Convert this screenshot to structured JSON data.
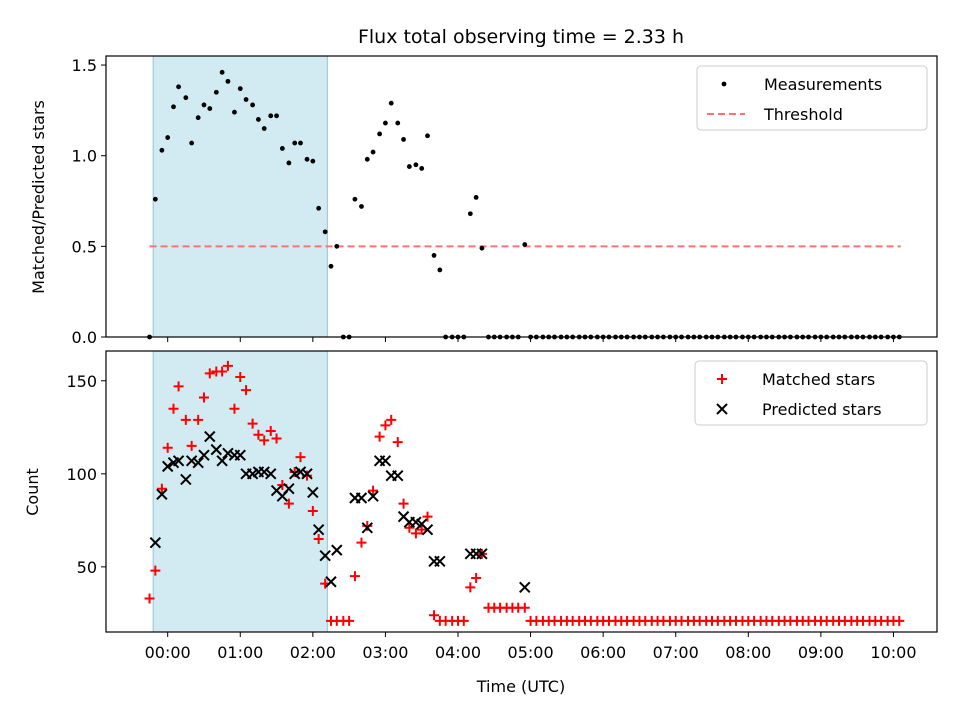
{
  "colors": {
    "measurement": "#000000",
    "threshold": "#ff7070",
    "matched": "#ff0000",
    "predicted": "#000000",
    "shade": "#add8e6"
  },
  "chart_data": [
    {
      "type": "scatter",
      "title": "Flux total observing time = 2.33 h",
      "xlabel": "",
      "ylabel": "Matched/Predicted stars",
      "xlim": [
        -0.85,
        10.6
      ],
      "ylim": [
        0,
        1.55
      ],
      "yticks": [
        0,
        0.5,
        1.0,
        1.5
      ],
      "ytick_labels": [
        "0.0",
        "0.5",
        "1.0",
        "1.5"
      ],
      "shaded_span": [
        -0.2,
        2.2
      ],
      "legend": {
        "position": "top-right",
        "entries": [
          "Measurements",
          "Threshold"
        ]
      },
      "threshold": {
        "name": "Threshold",
        "y": 0.5,
        "x_range": [
          -0.25,
          10.1
        ],
        "style": "dashed"
      },
      "series": [
        {
          "name": "Measurements",
          "marker": "dot",
          "x": [
            -0.25,
            -0.17,
            -0.08,
            0.0,
            0.08,
            0.15,
            0.25,
            0.33,
            0.42,
            0.5,
            0.58,
            0.67,
            0.75,
            0.83,
            0.92,
            1.0,
            1.08,
            1.17,
            1.25,
            1.33,
            1.42,
            1.5,
            1.58,
            1.67,
            1.75,
            1.83,
            1.92,
            2.0,
            2.08,
            2.17,
            2.25,
            2.33,
            2.42,
            2.5,
            2.58,
            2.67,
            2.75,
            2.83,
            2.92,
            3.0,
            3.08,
            3.17,
            3.25,
            3.33,
            3.42,
            3.5,
            3.58,
            3.67,
            3.75,
            3.83,
            3.92,
            4.0,
            4.08,
            4.17,
            4.25,
            4.33,
            4.42,
            4.5,
            4.58,
            4.67,
            4.75,
            4.83,
            4.92,
            5.0,
            5.08,
            5.17,
            5.25,
            5.33,
            5.42,
            5.5,
            5.58,
            5.67,
            5.75,
            5.83,
            5.92,
            6.0,
            6.08,
            6.17,
            6.25,
            6.33,
            6.42,
            6.5,
            6.58,
            6.67,
            6.75,
            6.83,
            6.92,
            7.0,
            7.08,
            7.17,
            7.25,
            7.33,
            7.42,
            7.5,
            7.58,
            7.67,
            7.75,
            7.83,
            7.92,
            8.0,
            8.08,
            8.17,
            8.25,
            8.33,
            8.42,
            8.5,
            8.58,
            8.67,
            8.75,
            8.83,
            8.92,
            9.0,
            9.08,
            9.17,
            9.25,
            9.33,
            9.42,
            9.5,
            9.58,
            9.67,
            9.75,
            9.83,
            9.92,
            10.0,
            10.08
          ],
          "y": [
            0.0,
            0.76,
            1.03,
            1.1,
            1.27,
            1.38,
            1.32,
            1.07,
            1.21,
            1.28,
            1.26,
            1.35,
            1.46,
            1.41,
            1.24,
            1.37,
            1.31,
            1.28,
            1.2,
            1.15,
            1.22,
            1.22,
            1.04,
            0.96,
            1.07,
            1.07,
            0.98,
            0.97,
            0.71,
            0.58,
            0.39,
            0.5,
            0.0,
            0.0,
            0.76,
            0.72,
            0.98,
            1.02,
            1.12,
            1.18,
            1.29,
            1.18,
            1.09,
            0.94,
            0.95,
            0.93,
            1.11,
            0.45,
            0.37,
            0.0,
            0.0,
            0.0,
            0.0,
            0.68,
            0.77,
            0.49,
            0.0,
            0.0,
            0.0,
            0.0,
            0.0,
            0.0,
            0.51,
            0.0,
            0.0,
            0.0,
            0.0,
            0.0,
            0.0,
            0.0,
            0.0,
            0.0,
            0.0,
            0.0,
            0.0,
            0.0,
            0.0,
            0.0,
            0.0,
            0.0,
            0.0,
            0.0,
            0.0,
            0.0,
            0.0,
            0.0,
            0.0,
            0.0,
            0.0,
            0.0,
            0.0,
            0.0,
            0.0,
            0.0,
            0.0,
            0.0,
            0.0,
            0.0,
            0.0,
            0.0,
            0.0,
            0.0,
            0.0,
            0.0,
            0.0,
            0.0,
            0.0,
            0.0,
            0.0,
            0.0,
            0.0,
            0.0,
            0.0,
            0.0,
            0.0,
            0.0,
            0.0,
            0.0,
            0.0,
            0.0,
            0.0,
            0.0,
            0.0,
            0.0,
            0.0
          ]
        }
      ]
    },
    {
      "type": "scatter",
      "title": "",
      "xlabel": "Time (UTC)",
      "ylabel": "Count",
      "xlim": [
        -0.85,
        10.6
      ],
      "ylim": [
        15,
        166
      ],
      "yticks": [
        50,
        100,
        150
      ],
      "ytick_labels": [
        "50",
        "100",
        "150"
      ],
      "xticks": [
        0,
        1,
        2,
        3,
        4,
        5,
        6,
        7,
        8,
        9,
        10
      ],
      "xtick_labels": [
        "00:00",
        "01:00",
        "02:00",
        "03:00",
        "04:00",
        "05:00",
        "06:00",
        "07:00",
        "08:00",
        "09:00",
        "10:00"
      ],
      "shaded_span": [
        -0.2,
        2.2
      ],
      "legend": {
        "position": "top-right",
        "entries": [
          "Matched stars",
          "Predicted stars"
        ]
      },
      "series": [
        {
          "name": "Matched stars",
          "marker": "plus",
          "x": [
            -0.25,
            -0.17,
            -0.08,
            0.0,
            0.08,
            0.15,
            0.25,
            0.33,
            0.42,
            0.5,
            0.58,
            0.67,
            0.75,
            0.83,
            0.92,
            1.0,
            1.08,
            1.17,
            1.25,
            1.33,
            1.42,
            1.5,
            1.58,
            1.67,
            1.75,
            1.83,
            1.92,
            2.0,
            2.08,
            2.17,
            2.25,
            2.33,
            2.42,
            2.5,
            2.58,
            2.67,
            2.75,
            2.83,
            2.92,
            3.0,
            3.08,
            3.17,
            3.25,
            3.33,
            3.42,
            3.5,
            3.58,
            3.67,
            3.75,
            3.83,
            3.92,
            4.0,
            4.08,
            4.17,
            4.25,
            4.33,
            4.42,
            4.5,
            4.58,
            4.67,
            4.75,
            4.83,
            4.92,
            5.0,
            5.08,
            5.17,
            5.25,
            5.33,
            5.42,
            5.5,
            5.58,
            5.67,
            5.75,
            5.83,
            5.92,
            6.0,
            6.08,
            6.17,
            6.25,
            6.33,
            6.42,
            6.5,
            6.58,
            6.67,
            6.75,
            6.83,
            6.92,
            7.0,
            7.08,
            7.17,
            7.25,
            7.33,
            7.42,
            7.5,
            7.58,
            7.67,
            7.75,
            7.83,
            7.92,
            8.0,
            8.08,
            8.17,
            8.25,
            8.33,
            8.42,
            8.5,
            8.58,
            8.67,
            8.75,
            8.83,
            8.92,
            9.0,
            9.08,
            9.17,
            9.25,
            9.33,
            9.42,
            9.5,
            9.58,
            9.67,
            9.75,
            9.83,
            9.92,
            10.0,
            10.08
          ],
          "y": [
            33,
            48,
            92,
            114,
            135,
            147,
            129,
            115,
            129,
            141,
            154,
            155,
            155,
            158,
            135,
            152,
            145,
            127,
            121,
            118,
            123,
            119,
            94,
            84,
            101,
            109,
            99,
            80,
            65,
            41,
            21,
            21,
            21,
            21,
            45,
            63,
            72,
            91,
            120,
            126,
            129,
            117,
            84,
            71,
            68,
            70,
            77,
            24,
            21,
            21,
            21,
            21,
            21,
            39,
            44,
            57,
            28,
            28,
            28,
            28,
            28,
            28,
            28,
            21,
            21,
            21,
            21,
            21,
            21,
            21,
            21,
            21,
            21,
            21,
            21,
            21,
            21,
            21,
            21,
            21,
            21,
            21,
            21,
            21,
            21,
            21,
            21,
            21,
            21,
            21,
            21,
            21,
            21,
            21,
            21,
            21,
            21,
            21,
            21,
            21,
            21,
            21,
            21,
            21,
            21,
            21,
            21,
            21,
            21,
            21,
            21,
            21,
            21,
            21,
            21,
            21,
            21,
            21,
            21,
            21,
            21,
            21,
            21,
            21,
            21
          ]
        },
        {
          "name": "Predicted stars",
          "marker": "x",
          "x": [
            -0.17,
            -0.08,
            0.0,
            0.08,
            0.15,
            0.25,
            0.33,
            0.42,
            0.5,
            0.58,
            0.67,
            0.75,
            0.83,
            0.92,
            1.0,
            1.08,
            1.17,
            1.25,
            1.33,
            1.42,
            1.5,
            1.58,
            1.67,
            1.75,
            1.83,
            1.92,
            2.0,
            2.08,
            2.17,
            2.25,
            2.33,
            2.58,
            2.67,
            2.75,
            2.83,
            2.92,
            3.0,
            3.08,
            3.17,
            3.25,
            3.33,
            3.42,
            3.5,
            3.58,
            3.67,
            3.75,
            4.17,
            4.25,
            4.33,
            4.92
          ],
          "y": [
            63,
            89,
            104,
            106,
            107,
            97,
            107,
            106,
            110,
            120,
            113,
            107,
            111,
            110,
            110,
            100,
            100,
            101,
            101,
            100,
            91,
            88,
            92,
            100,
            101,
            100,
            90,
            70,
            56,
            42,
            59,
            87,
            87,
            71,
            88,
            107,
            107,
            99,
            99,
            77,
            74,
            74,
            73,
            70,
            53,
            53,
            57,
            57,
            57,
            39
          ]
        }
      ]
    }
  ]
}
